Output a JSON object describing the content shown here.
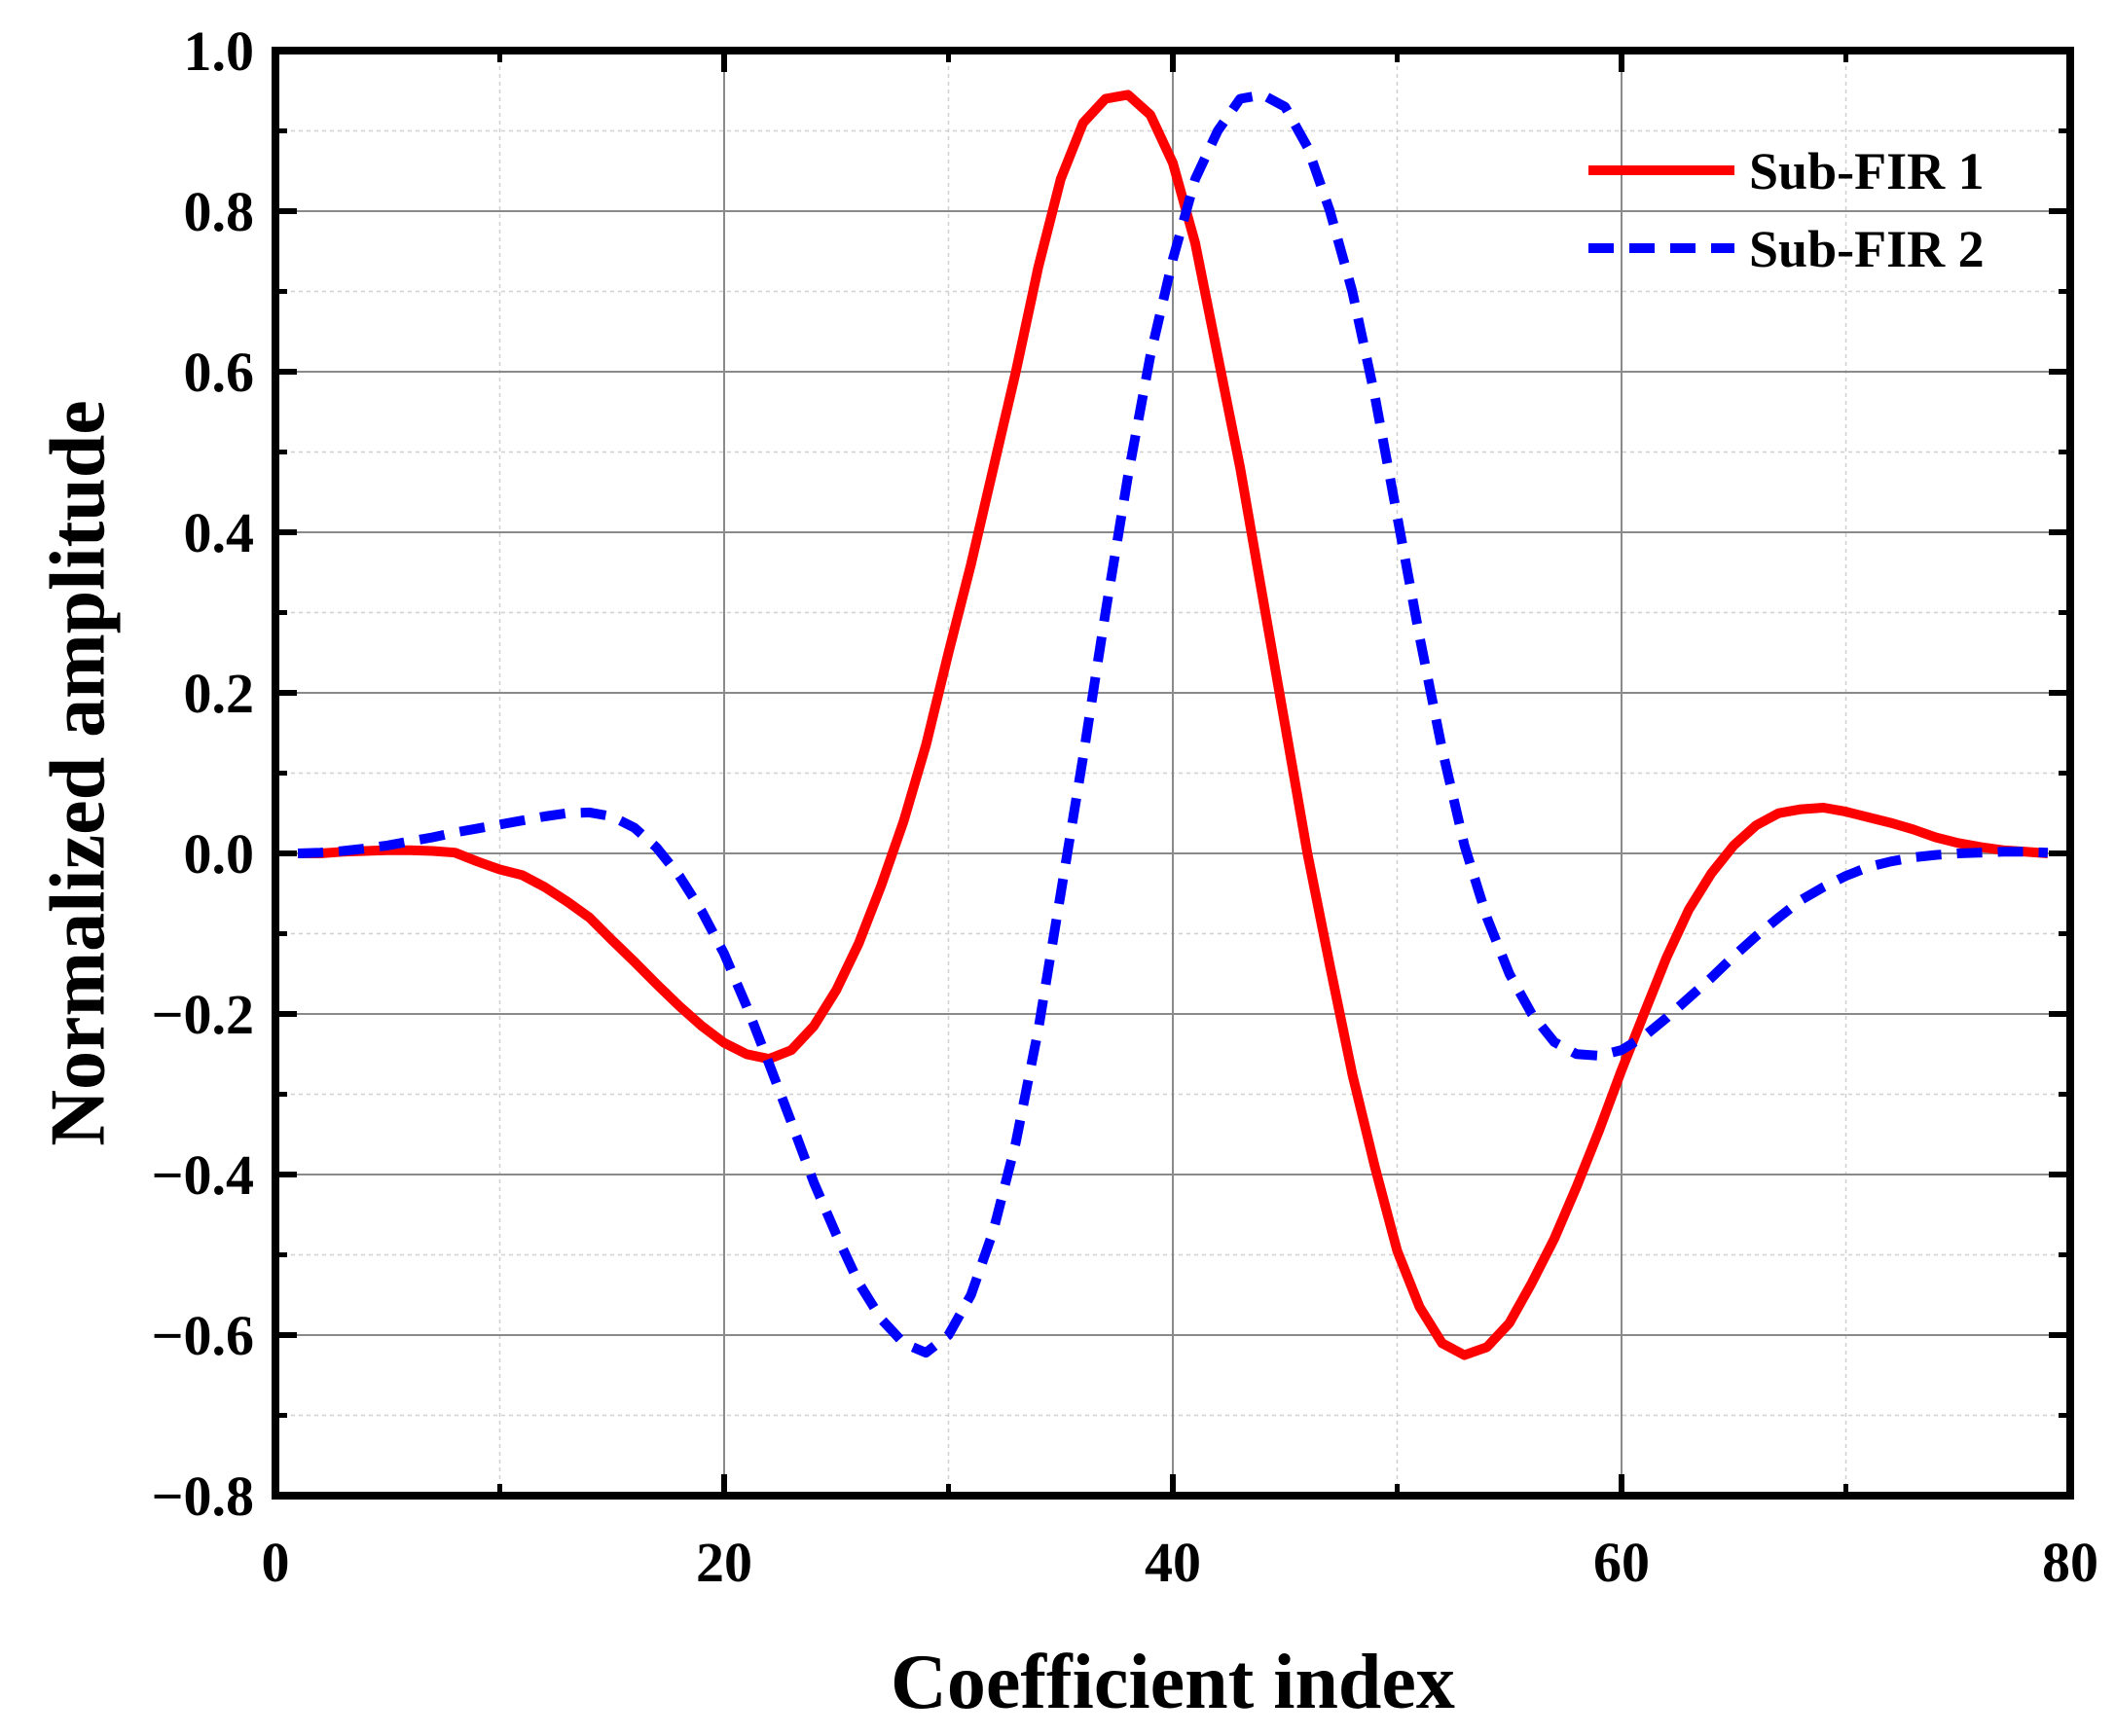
{
  "chart_data": {
    "type": "line",
    "title": "",
    "xlabel": "Coefficient index",
    "ylabel": "Normalized amplitude",
    "xlim": [
      0,
      80
    ],
    "ylim": [
      -0.8,
      1.0
    ],
    "xticks": [
      0,
      20,
      40,
      60,
      80
    ],
    "xtick_labels": [
      "0",
      "20",
      "40",
      "60",
      "80"
    ],
    "yticks": [
      -0.8,
      -0.6,
      -0.4,
      -0.2,
      0.0,
      0.2,
      0.4,
      0.6,
      0.8,
      1.0
    ],
    "ytick_labels": [
      "−0.8",
      "−0.6",
      "−0.4",
      "−0.2",
      "0.0",
      "0.2",
      "0.4",
      "0.6",
      "0.8",
      "1.0"
    ],
    "grid": true,
    "legend_position": "top-right",
    "series": [
      {
        "name": "Sub-FIR 1",
        "color": "#ff0000",
        "style": "solid",
        "x": [
          1,
          2,
          3,
          4,
          5,
          6,
          7,
          8,
          9,
          10,
          11,
          12,
          13,
          14,
          15,
          16,
          17,
          18,
          19,
          20,
          21,
          22,
          23,
          24,
          25,
          26,
          27,
          28,
          29,
          30,
          31,
          32,
          33,
          34,
          35,
          36,
          37,
          38,
          39,
          40,
          41,
          42,
          43,
          44,
          45,
          46,
          47,
          48,
          49,
          50,
          51,
          52,
          53,
          54,
          55,
          56,
          57,
          58,
          59,
          60,
          61,
          62,
          63,
          64,
          65,
          66,
          67,
          68,
          69,
          70,
          71,
          72,
          73,
          74,
          75,
          76,
          77,
          78,
          79
        ],
        "values": [
          0.0,
          0.0,
          0.002,
          0.003,
          0.004,
          0.004,
          0.003,
          0.001,
          -0.01,
          -0.02,
          -0.027,
          -0.042,
          -0.06,
          -0.08,
          -0.108,
          -0.135,
          -0.163,
          -0.19,
          -0.215,
          -0.236,
          -0.25,
          -0.256,
          -0.245,
          -0.215,
          -0.17,
          -0.112,
          -0.04,
          0.04,
          0.135,
          0.25,
          0.36,
          0.48,
          0.6,
          0.73,
          0.84,
          0.91,
          0.94,
          0.945,
          0.92,
          0.86,
          0.76,
          0.62,
          0.48,
          0.32,
          0.16,
          0.0,
          -0.14,
          -0.275,
          -0.39,
          -0.495,
          -0.565,
          -0.61,
          -0.625,
          -0.615,
          -0.585,
          -0.535,
          -0.48,
          -0.415,
          -0.345,
          -0.27,
          -0.2,
          -0.13,
          -0.07,
          -0.025,
          0.01,
          0.035,
          0.05,
          0.055,
          0.057,
          0.052,
          0.045,
          0.038,
          0.03,
          0.02,
          0.013,
          0.008,
          0.004,
          0.002,
          0.0
        ]
      },
      {
        "name": "Sub-FIR 2",
        "color": "#0000ff",
        "style": "dashed",
        "x": [
          1,
          2,
          3,
          4,
          5,
          6,
          7,
          8,
          9,
          10,
          11,
          12,
          13,
          14,
          15,
          16,
          17,
          18,
          19,
          20,
          21,
          22,
          23,
          24,
          25,
          26,
          27,
          28,
          29,
          30,
          31,
          32,
          33,
          34,
          35,
          36,
          37,
          38,
          39,
          40,
          41,
          42,
          43,
          44,
          45,
          46,
          47,
          48,
          49,
          50,
          51,
          52,
          53,
          54,
          55,
          56,
          57,
          58,
          59,
          60,
          61,
          62,
          63,
          64,
          65,
          66,
          67,
          68,
          69,
          70,
          71,
          72,
          73,
          74,
          75,
          76,
          77,
          78,
          79
        ],
        "values": [
          0.0,
          0.001,
          0.003,
          0.006,
          0.01,
          0.015,
          0.02,
          0.026,
          0.031,
          0.036,
          0.041,
          0.046,
          0.05,
          0.051,
          0.046,
          0.032,
          0.007,
          -0.028,
          -0.072,
          -0.125,
          -0.19,
          -0.262,
          -0.335,
          -0.41,
          -0.475,
          -0.535,
          -0.58,
          -0.61,
          -0.622,
          -0.6,
          -0.55,
          -0.47,
          -0.36,
          -0.22,
          -0.05,
          0.12,
          0.3,
          0.47,
          0.62,
          0.74,
          0.84,
          0.9,
          0.94,
          0.945,
          0.93,
          0.88,
          0.8,
          0.7,
          0.57,
          0.42,
          0.27,
          0.13,
          0.01,
          -0.08,
          -0.15,
          -0.2,
          -0.235,
          -0.25,
          -0.252,
          -0.245,
          -0.228,
          -0.205,
          -0.18,
          -0.155,
          -0.128,
          -0.103,
          -0.08,
          -0.058,
          -0.042,
          -0.028,
          -0.017,
          -0.01,
          -0.005,
          -0.002,
          0.0,
          0.001,
          0.002,
          0.002,
          0.001
        ]
      }
    ]
  }
}
